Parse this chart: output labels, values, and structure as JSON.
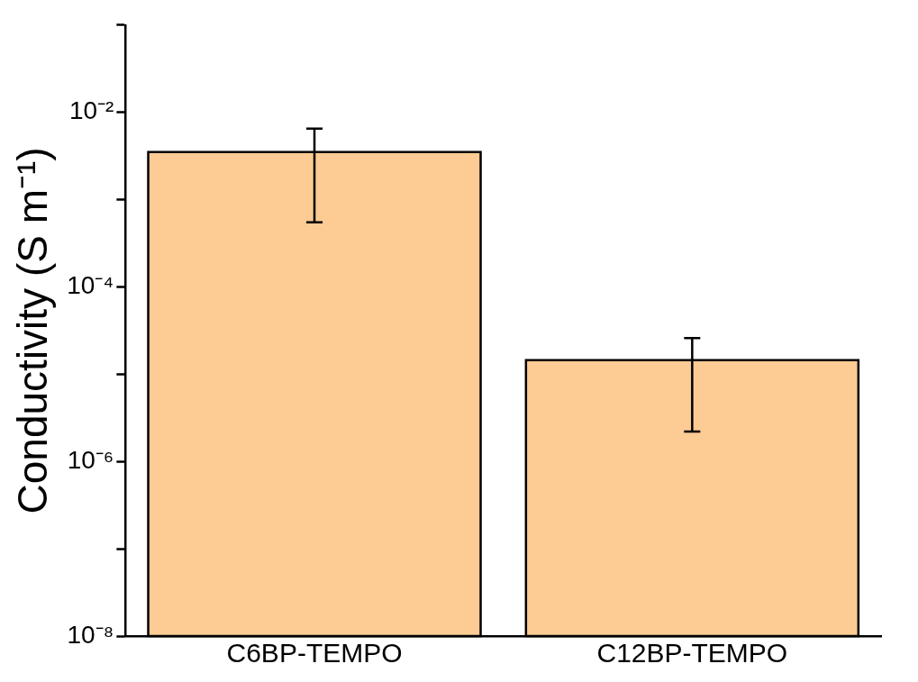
{
  "chart_data": {
    "type": "bar",
    "ylabel": "Conductivity (S m⁻¹)",
    "categories": [
      "C6BP-TEMPO",
      "C12BP-TEMPO"
    ],
    "values": [
      0.0035,
      1.45e-05
    ],
    "errors": [
      [
        0.00055,
        0.0065
      ],
      [
        2.2e-06,
        2.6e-05
      ]
    ],
    "color": "#fdcb94",
    "log": true,
    "ylim": [
      1e-08,
      0.1
    ],
    "yticks": [
      {
        "value": 1e-08,
        "label": "10⁻⁸"
      },
      {
        "value": 1e-07,
        "label": null
      },
      {
        "value": 1e-06,
        "label": "10⁻⁶"
      },
      {
        "value": 1e-05,
        "label": null
      },
      {
        "value": 0.0001,
        "label": "10⁻⁴"
      },
      {
        "value": 0.001,
        "label": null
      },
      {
        "value": 0.01,
        "label": "10⁻²"
      },
      {
        "value": 0.1,
        "label": null
      }
    ],
    "grid": false,
    "legend": false
  }
}
